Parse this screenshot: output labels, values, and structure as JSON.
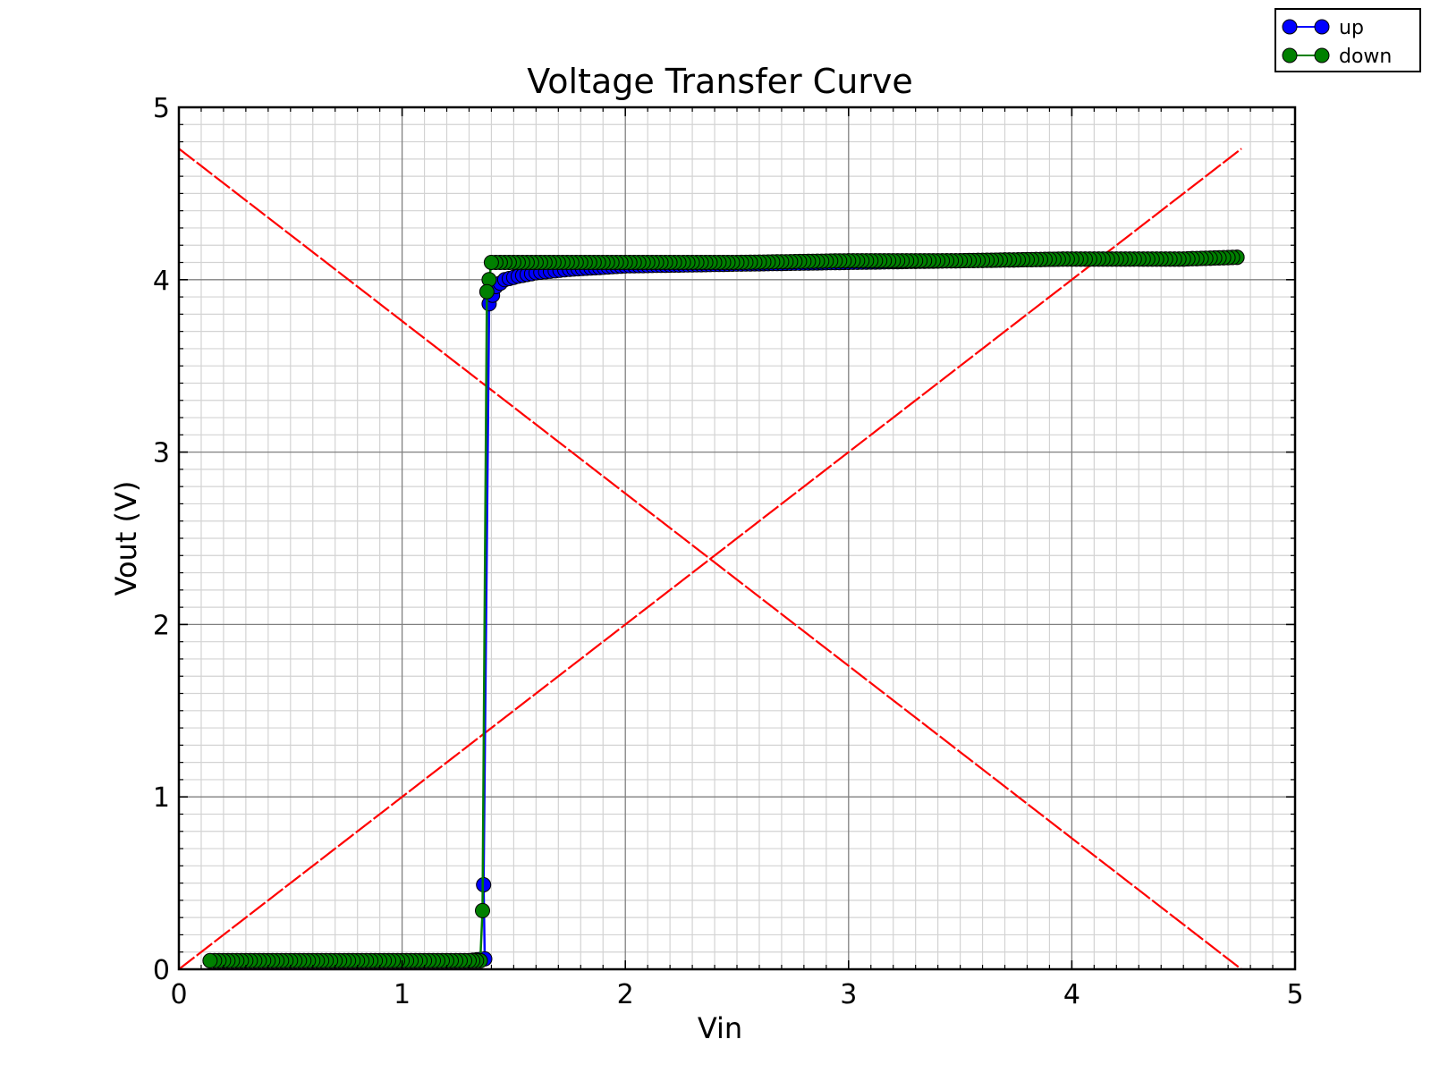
{
  "chart_data": {
    "type": "line",
    "title": "Voltage Transfer Curve",
    "xlabel": "Vin",
    "ylabel": "Vout (V)",
    "xlim": [
      0,
      5
    ],
    "ylim": [
      0,
      5
    ],
    "xticks": [
      "0",
      "1",
      "2",
      "3",
      "4",
      "5"
    ],
    "yticks": [
      "0",
      "1",
      "2",
      "3",
      "4",
      "5"
    ],
    "grid": true,
    "minor_grid": true,
    "legend_position": "top-right",
    "reference_lines": [
      {
        "x": [
          0,
          4.76
        ],
        "y": [
          0,
          4.76
        ],
        "color": "#ff0000",
        "style": "dashed"
      },
      {
        "x": [
          0,
          4.76
        ],
        "y": [
          4.76,
          0
        ],
        "color": "#ff0000",
        "style": "dashed"
      }
    ],
    "series": [
      {
        "name": "up",
        "color": "#0000ff",
        "x": [
          0.14,
          0.3,
          0.5,
          0.7,
          0.9,
          1.1,
          1.3,
          1.37,
          1.365,
          1.39,
          1.42,
          1.46,
          1.52,
          1.6,
          1.75,
          2.0,
          2.5,
          3.0,
          3.5,
          4.0,
          4.5,
          4.74
        ],
        "y": [
          0.05,
          0.05,
          0.05,
          0.05,
          0.05,
          0.05,
          0.05,
          0.06,
          0.49,
          3.86,
          3.96,
          4.0,
          4.02,
          4.04,
          4.06,
          4.08,
          4.09,
          4.1,
          4.11,
          4.12,
          4.12,
          4.13
        ]
      },
      {
        "name": "down",
        "color": "#008000",
        "x": [
          4.74,
          4.5,
          4.0,
          3.5,
          3.0,
          2.5,
          2.0,
          1.7,
          1.5,
          1.4,
          1.39,
          1.38,
          1.36,
          1.35,
          1.3,
          1.1,
          0.9,
          0.7,
          0.5,
          0.3,
          0.14
        ],
        "y": [
          4.13,
          4.12,
          4.12,
          4.11,
          4.11,
          4.1,
          4.1,
          4.1,
          4.1,
          4.1,
          4.0,
          3.93,
          0.34,
          0.05,
          0.05,
          0.05,
          0.05,
          0.05,
          0.05,
          0.05,
          0.05
        ]
      }
    ]
  }
}
